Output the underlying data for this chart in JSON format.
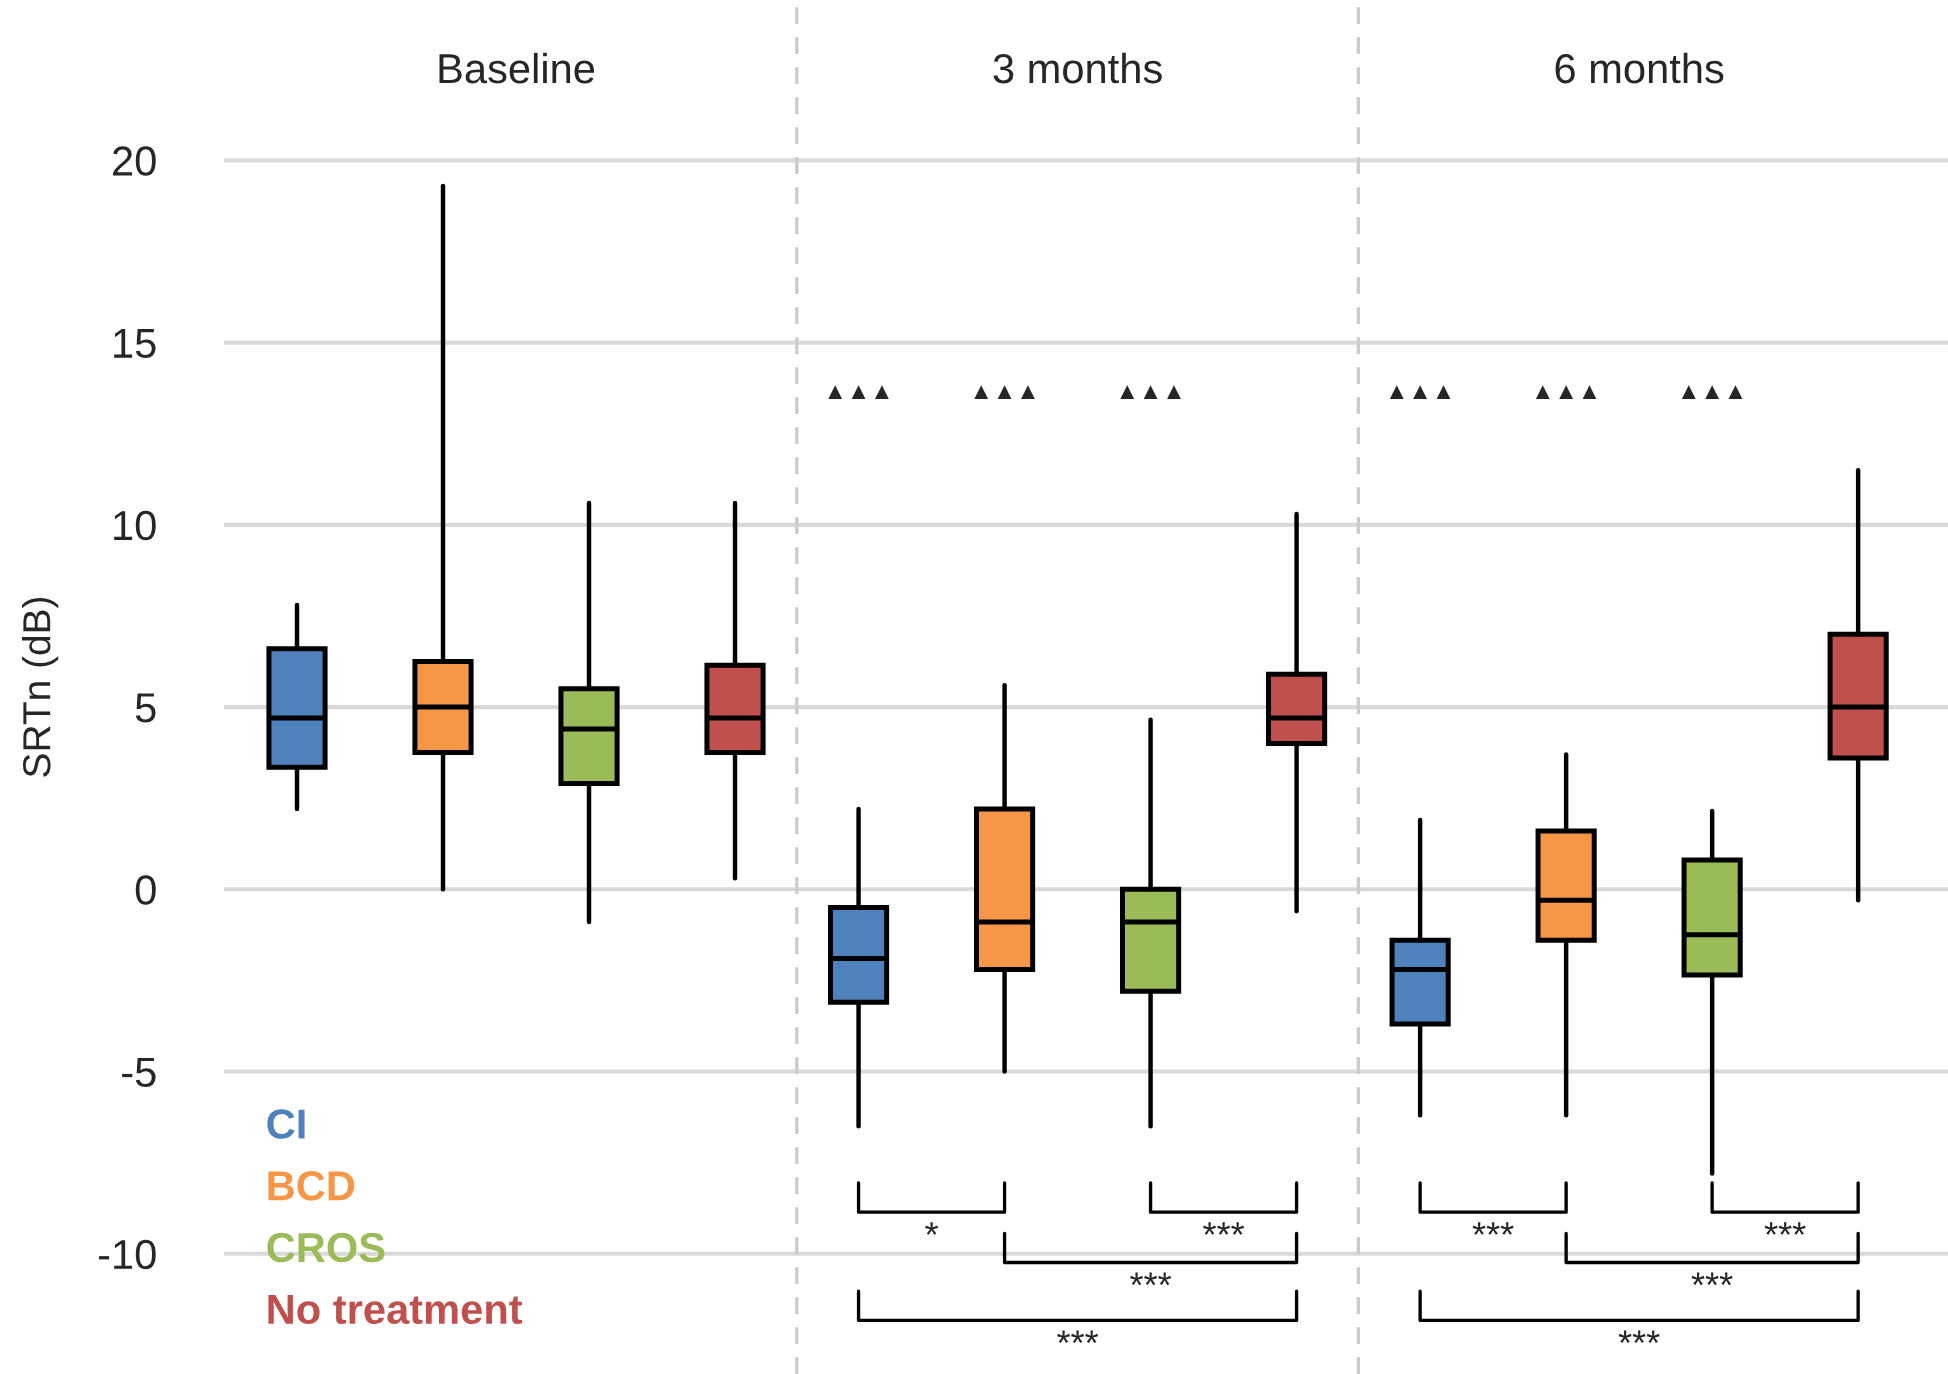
{
  "chart_data": {
    "type": "box",
    "categories": [
      "Baseline",
      "3 months",
      "6 months"
    ],
    "ylabel": "SRTn (dB)",
    "ylim": [
      -13.3,
      24.4
    ],
    "yticks": [
      -10,
      -5,
      0,
      5,
      10,
      15,
      20
    ],
    "grid": "y",
    "legend": "bottom left",
    "series": [
      {
        "name": "CI",
        "color": "#4f81bd",
        "value_labels": [
          null,
          "▲▲▲",
          "▲▲▲"
        ],
        "boxes": [
          {
            "low": 2.2,
            "q1": 3.35,
            "median": 4.7,
            "q3": 6.6,
            "high": 7.8
          },
          {
            "low": -6.5,
            "q1": -3.1,
            "median": -1.9,
            "q3": -0.5,
            "high": 2.2
          },
          {
            "low": -6.2,
            "q1": -3.7,
            "median": -2.2,
            "q3": -1.4,
            "high": 1.9
          }
        ]
      },
      {
        "name": "BCD",
        "color": "#f79646",
        "value_labels": [
          null,
          "▲▲▲",
          "▲▲▲"
        ],
        "boxes": [
          {
            "low": 0.0,
            "q1": 3.75,
            "median": 5.0,
            "q3": 6.25,
            "high": 19.3
          },
          {
            "low": -5.0,
            "q1": -2.2,
            "median": -0.9,
            "q3": 2.2,
            "high": 5.6
          },
          {
            "low": -6.2,
            "q1": -1.4,
            "median": -0.3,
            "q3": 1.6,
            "high": 3.7
          }
        ]
      },
      {
        "name": "CROS",
        "color": "#9bbb59",
        "value_labels": [
          null,
          "▲▲▲",
          "▲▲▲"
        ],
        "boxes": [
          {
            "low": -0.9,
            "q1": 2.9,
            "median": 4.4,
            "q3": 5.5,
            "high": 10.6
          },
          {
            "low": -6.5,
            "q1": -2.8,
            "median": -0.9,
            "q3": 0.0,
            "high": 4.65
          },
          {
            "low": -7.8,
            "q1": -2.35,
            "median": -1.25,
            "q3": 0.8,
            "high": 2.15
          }
        ]
      },
      {
        "name": "No treatment",
        "color": "#c0504d",
        "boxes": [
          {
            "low": 0.3,
            "q1": 3.75,
            "median": 4.7,
            "q3": 6.15,
            "high": 10.6
          },
          {
            "low": -0.6,
            "q1": 4.0,
            "median": 4.7,
            "q3": 5.9,
            "high": 10.3
          },
          {
            "low": -0.3,
            "q1": 3.6,
            "median": 5.0,
            "q3": 7.0,
            "high": 11.5
          }
        ]
      }
    ],
    "annotations": [
      "*",
      "***",
      "***",
      "***",
      "***",
      "***",
      "***",
      "***"
    ]
  }
}
